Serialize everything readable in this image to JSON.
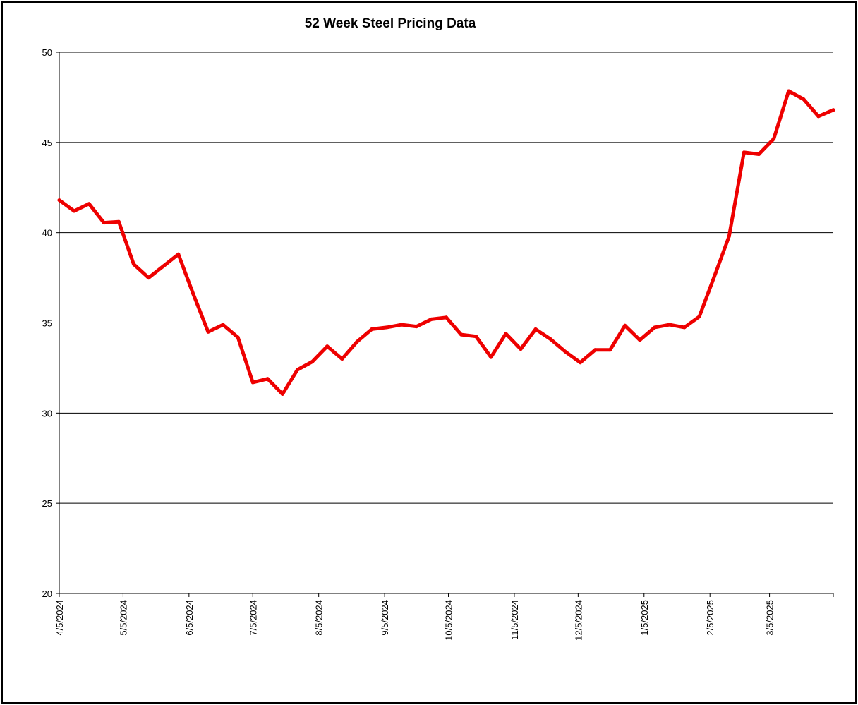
{
  "chart_data": {
    "type": "line",
    "title": "52 Week Steel Pricing Data",
    "xlabel": "",
    "ylabel": "",
    "ylim": [
      20,
      50
    ],
    "yticks": [
      20,
      25,
      30,
      35,
      40,
      45,
      50
    ],
    "grid": "horizontal",
    "x_tick_labels": [
      "4/5/2024",
      "5/5/2024",
      "6/5/2024",
      "7/5/2024",
      "8/5/2024",
      "9/5/2024",
      "10/5/2024",
      "11/5/2024",
      "12/5/2024",
      "1/5/2025",
      "2/5/2025",
      "3/5/2025"
    ],
    "series": [
      {
        "color": "#ee0000",
        "points": [
          [
            "2024-04-05",
            41.8
          ],
          [
            "2024-04-12",
            41.2
          ],
          [
            "2024-04-19",
            41.6
          ],
          [
            "2024-04-26",
            40.55
          ],
          [
            "2024-05-03",
            40.6
          ],
          [
            "2024-05-10",
            38.25
          ],
          [
            "2024-05-17",
            37.5
          ],
          [
            "2024-05-24",
            38.15
          ],
          [
            "2024-05-31",
            38.8
          ],
          [
            "2024-06-07",
            36.6
          ],
          [
            "2024-06-14",
            34.5
          ],
          [
            "2024-06-21",
            34.9
          ],
          [
            "2024-06-28",
            34.2
          ],
          [
            "2024-07-05",
            31.7
          ],
          [
            "2024-07-12",
            31.9
          ],
          [
            "2024-07-19",
            31.05
          ],
          [
            "2024-07-26",
            32.4
          ],
          [
            "2024-08-02",
            32.85
          ],
          [
            "2024-08-09",
            33.7
          ],
          [
            "2024-08-16",
            33.0
          ],
          [
            "2024-08-23",
            33.95
          ],
          [
            "2024-08-30",
            34.65
          ],
          [
            "2024-09-06",
            34.75
          ],
          [
            "2024-09-13",
            34.9
          ],
          [
            "2024-09-20",
            34.8
          ],
          [
            "2024-09-27",
            35.2
          ],
          [
            "2024-10-04",
            35.3
          ],
          [
            "2024-10-11",
            34.35
          ],
          [
            "2024-10-18",
            34.25
          ],
          [
            "2024-10-25",
            33.1
          ],
          [
            "2024-11-01",
            34.4
          ],
          [
            "2024-11-08",
            33.55
          ],
          [
            "2024-11-15",
            34.65
          ],
          [
            "2024-11-22",
            34.1
          ],
          [
            "2024-11-29",
            33.4
          ],
          [
            "2024-12-06",
            32.8
          ],
          [
            "2024-12-13",
            33.5
          ],
          [
            "2024-12-20",
            33.5
          ],
          [
            "2024-12-27",
            34.85
          ],
          [
            "2025-01-03",
            34.05
          ],
          [
            "2025-01-10",
            34.75
          ],
          [
            "2025-01-17",
            34.9
          ],
          [
            "2025-01-24",
            34.75
          ],
          [
            "2025-01-31",
            35.35
          ],
          [
            "2025-02-07",
            37.55
          ],
          [
            "2025-02-14",
            39.8
          ],
          [
            "2025-02-21",
            44.45
          ],
          [
            "2025-02-28",
            44.35
          ],
          [
            "2025-03-07",
            45.2
          ],
          [
            "2025-03-14",
            47.85
          ],
          [
            "2025-03-21",
            47.4
          ],
          [
            "2025-03-28",
            46.45
          ],
          [
            "2025-04-04",
            46.8
          ]
        ]
      }
    ]
  }
}
